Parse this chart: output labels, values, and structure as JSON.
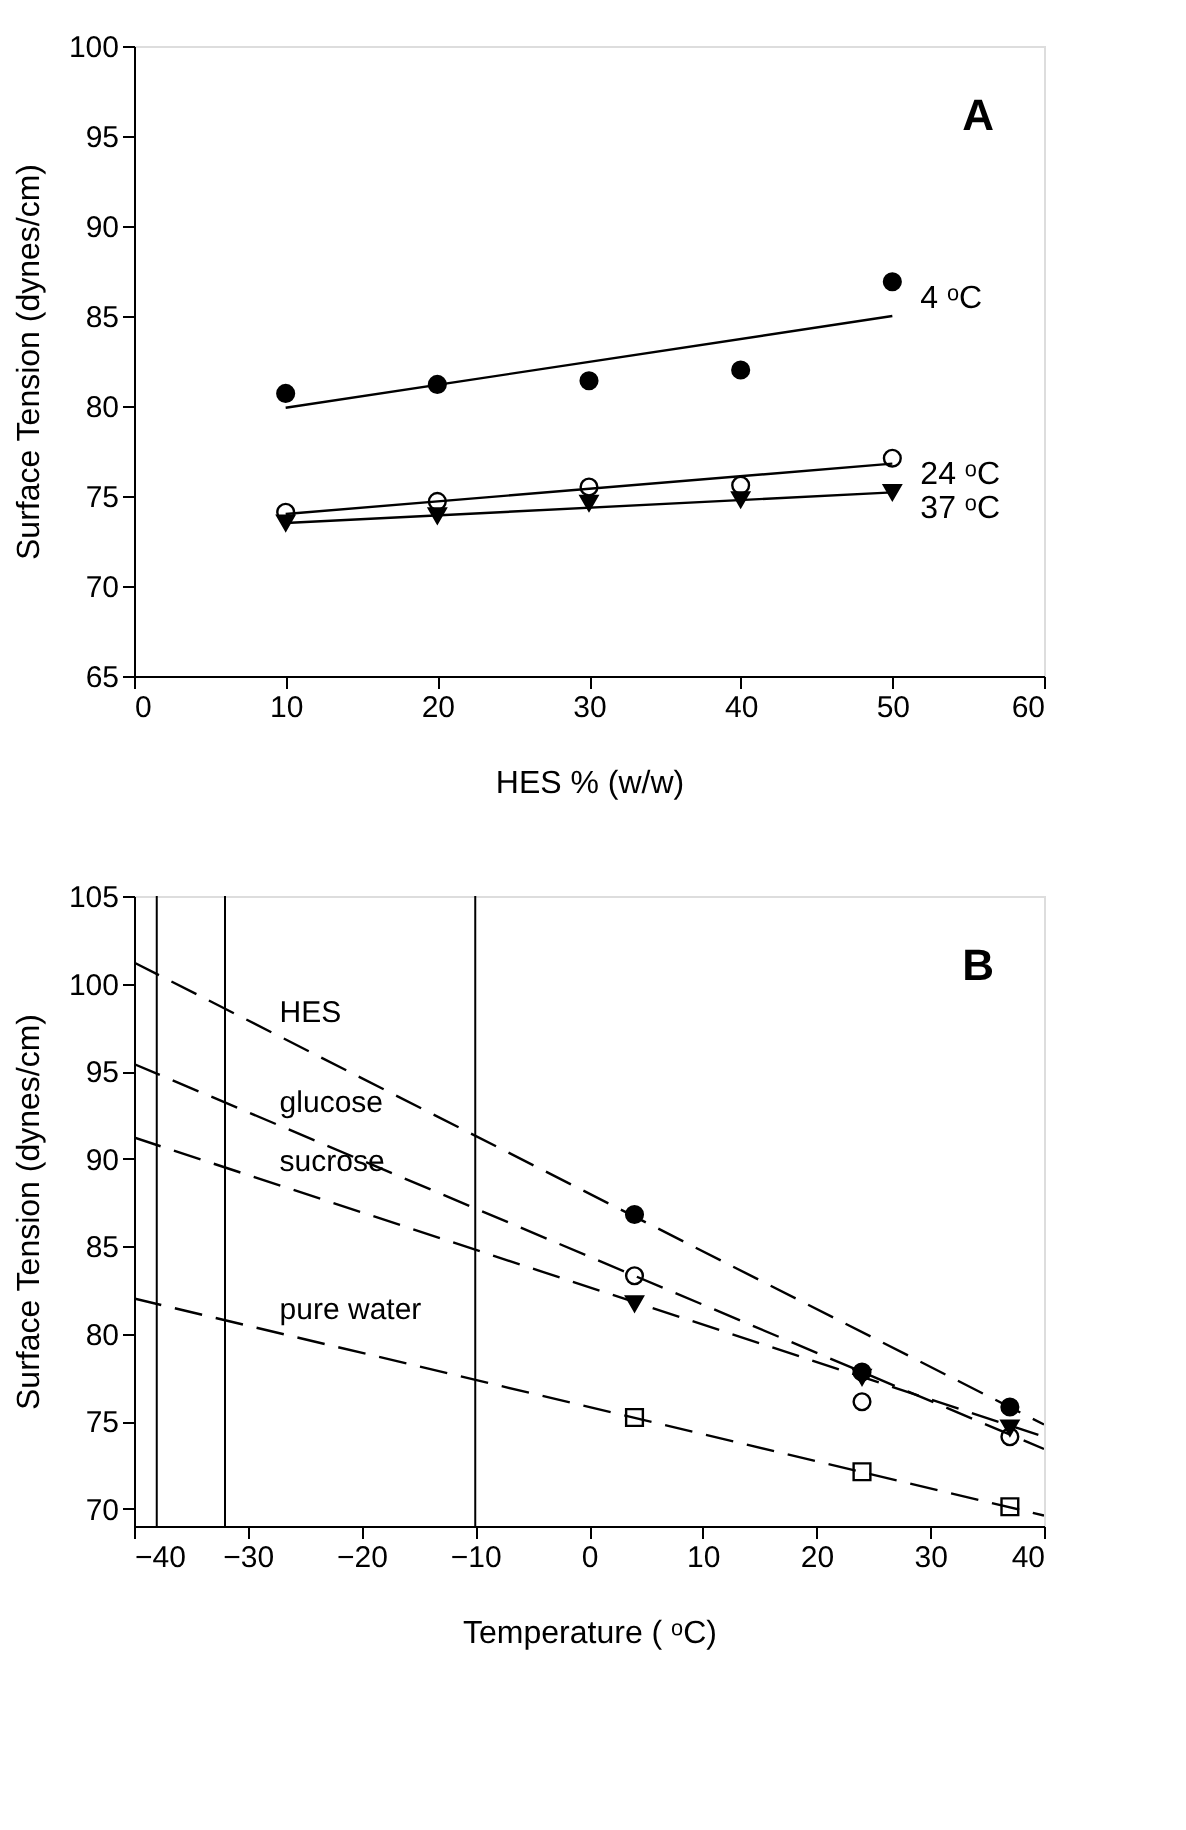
{
  "chart_data": [
    {
      "type": "scatter",
      "xlabel": "HES % (w/w)",
      "ylabel": "Surface Tension (dynes/cm)",
      "annotations": [
        "A"
      ],
      "xlim": [
        0,
        60
      ],
      "xticks": [
        0,
        10,
        20,
        30,
        40,
        50,
        60
      ],
      "ylim": [
        65,
        100
      ],
      "yticks": [
        65,
        70,
        75,
        80,
        85,
        90,
        95,
        100
      ],
      "grid": false,
      "series": [
        {
          "name": "4 ᵒC",
          "marker": "circle",
          "color": "#000000",
          "x": [
            10,
            20,
            30,
            40,
            50
          ],
          "values": [
            80.7,
            81.2,
            81.4,
            82.0,
            86.9
          ],
          "errors": [
            null,
            0.3,
            null,
            null,
            0.4
          ]
        },
        {
          "name": "24 ᵒC",
          "marker": "circle",
          "color": "#ffffff",
          "x": [
            10,
            20,
            30,
            40,
            50
          ],
          "values": [
            74.1,
            74.7,
            75.5,
            75.6,
            77.1
          ]
        },
        {
          "name": "37 ᵒC",
          "marker": "triangle",
          "color": "#000000",
          "x": [
            10,
            20,
            30,
            40,
            50
          ],
          "values": [
            73.5,
            73.9,
            74.6,
            74.8,
            75.2
          ],
          "errors": [
            null,
            null,
            0.3,
            null,
            null
          ]
        },
        {
          "type": "line",
          "line_style": "solid",
          "color": "#000000",
          "x": [
            10,
            50
          ],
          "values": [
            79.9,
            85.0
          ]
        },
        {
          "type": "line",
          "line_style": "solid",
          "color": "#000000",
          "x": [
            10,
            50
          ],
          "values": [
            74.0,
            76.8
          ]
        },
        {
          "type": "line",
          "line_style": "solid",
          "color": "#000000",
          "x": [
            10,
            50
          ],
          "values": [
            73.5,
            75.2
          ]
        }
      ]
    },
    {
      "type": "scatter",
      "xlabel": "Temperature ( ᵒC)",
      "ylabel": "Surface Tension (dynes/cm)",
      "annotations": [
        "B"
      ],
      "xlim": [
        -40,
        40
      ],
      "xticks": [
        -40,
        -30,
        -20,
        -10,
        0,
        10,
        20,
        30,
        40
      ],
      "ylim": [
        69,
        105
      ],
      "yticks": [
        70,
        75,
        80,
        85,
        90,
        95,
        100,
        105
      ],
      "grid": false,
      "ref_lines": [
        {
          "axis": "x",
          "value": -38
        },
        {
          "axis": "x",
          "value": -32
        },
        {
          "axis": "x",
          "value": -10
        }
      ],
      "series": [
        {
          "marker": "circle",
          "color": "#000000",
          "x": [
            4,
            24,
            37
          ],
          "values": [
            86.8,
            77.8,
            75.8
          ]
        },
        {
          "marker": "circle",
          "color": "#ffffff",
          "x": [
            4,
            24,
            37
          ],
          "values": [
            83.3,
            76.1,
            74.1
          ]
        },
        {
          "marker": "triangle",
          "color": "#000000",
          "x": [
            4,
            24,
            37
          ],
          "values": [
            81.7,
            77.5,
            74.6
          ]
        },
        {
          "marker": "square",
          "color": "#ffffff",
          "x": [
            4,
            24,
            37
          ],
          "values": [
            75.2,
            72.1,
            70.1
          ]
        },
        {
          "name": "HES",
          "type": "line",
          "line_style": "dashed",
          "color": "#000000",
          "x": [
            -40,
            40
          ],
          "values": [
            101.2,
            74.8
          ]
        },
        {
          "name": "glucose",
          "type": "line",
          "line_style": "dashed",
          "color": "#000000",
          "x": [
            -40,
            40
          ],
          "values": [
            95.4,
            73.4
          ]
        },
        {
          "name": "sucrose",
          "type": "line",
          "line_style": "dashed",
          "color": "#000000",
          "x": [
            -40,
            40
          ],
          "values": [
            91.2,
            74.1
          ]
        },
        {
          "name": "pure water",
          "type": "line",
          "line_style": "dashed",
          "color": "#000000",
          "x": [
            -40,
            40
          ],
          "values": [
            82.0,
            69.6
          ]
        }
      ]
    }
  ]
}
